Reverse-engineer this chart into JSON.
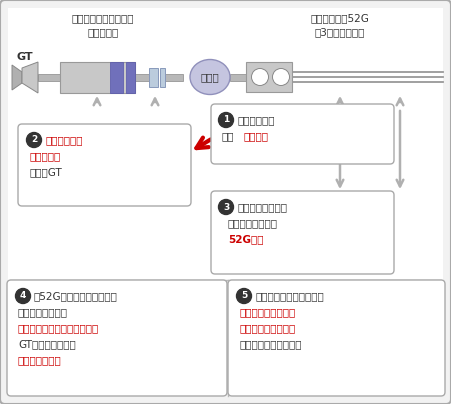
{
  "bg_color": "#f2f2f2",
  "border_color": "#aaaaaa",
  "title_gt": "GT",
  "label_gearbox": "带整体式扭矩限制器的\n齿轮减速机",
  "label_breaker": "发电机断路器52G\n（3周期断路器）",
  "label_generator": "发电机",
  "box1_line1": "发生停电事故",
  "box1_line2_black": "导致",
  "box1_line2_red": "扭矩过大",
  "box2_red1": "扭矩限制器会",
  "box2_red2": "立即滑动，",
  "box2_black": "以保护GT",
  "box3_black1": "检测到商业停电或",
  "box3_black2": "发电机过载事故，",
  "box3_red": "52G打开",
  "box4_black1": "当52G解列而中断系统时，",
  "box4_black2": "过大扭矩将减小，",
  "box4_red1": "扭矩限制器会自动重新啮合，",
  "box4_black3": "GT发电装置会转换",
  "box4_red2": "到空载待机状态",
  "box5_black1": "检测到商业电力恢复后，",
  "box5_red1": "断路器会重新开启，",
  "box5_red2": "并与商业电网同步，",
  "box5_black2": "系统回到原始连接状态",
  "red_color": "#cc0000",
  "dark_color": "#333333",
  "box_bg": "#ffffff",
  "shaft_color": "#b8b8b8",
  "gear_color": "#c8c8c8",
  "gear_edge": "#999999",
  "blue_stripe": "#7070bb",
  "gen_fill": "#c5c5e0",
  "gen_edge": "#9090bb",
  "conn_fill": "#bbccdd",
  "conn_edge": "#8899bb",
  "line_color": "#999999",
  "arrow_gray": "#b0b0b0"
}
